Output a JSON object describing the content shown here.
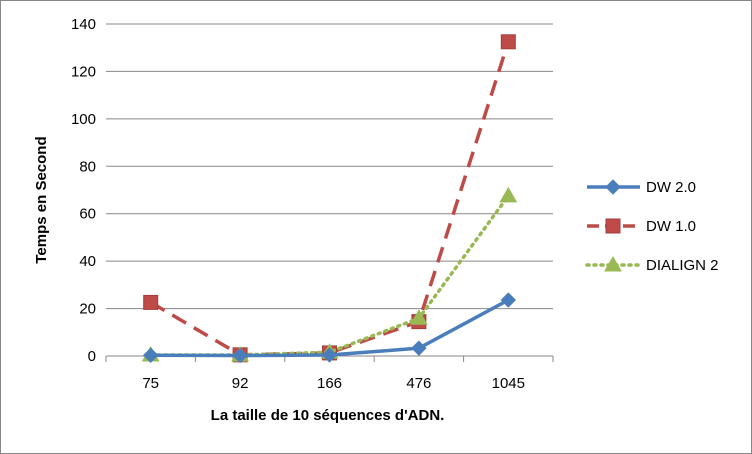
{
  "chart_data": {
    "type": "line",
    "categories": [
      "75",
      "92",
      "166",
      "476",
      "1045"
    ],
    "series": [
      {
        "name": "DW 2.0",
        "values": [
          0.3,
          0.2,
          0.4,
          3.3,
          23.6
        ],
        "color": "#4a7ebb",
        "marker": "diamond",
        "dash": "solid"
      },
      {
        "name": "DW 1.0",
        "values": [
          22.6,
          0.5,
          1.3,
          14.5,
          132.5
        ],
        "color": "#be4b48",
        "marker": "square",
        "dash": "dashed"
      },
      {
        "name": "DIALIGN 2",
        "values": [
          0.4,
          0.4,
          1.6,
          15.9,
          67.5
        ],
        "color": "#98b954",
        "marker": "triangle",
        "dash": "dotted"
      }
    ],
    "xlabel": "La taille de 10 séquences d'ADN.",
    "ylabel": "Temps en Second",
    "ylim": [
      0,
      140
    ],
    "yticks": [
      "0",
      "20",
      "40",
      "60",
      "80",
      "100",
      "120",
      "140"
    ],
    "grid": "horizontal",
    "legend_position": "right"
  }
}
